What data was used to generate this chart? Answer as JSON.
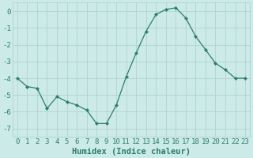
{
  "x": [
    0,
    1,
    2,
    3,
    4,
    5,
    6,
    7,
    8,
    9,
    10,
    11,
    12,
    13,
    14,
    15,
    16,
    17,
    18,
    19,
    20,
    21,
    22,
    23
  ],
  "y": [
    -4.0,
    -4.5,
    -4.6,
    -5.8,
    -5.1,
    -5.4,
    -5.6,
    -5.9,
    -6.7,
    -6.7,
    -5.6,
    -3.9,
    -2.5,
    -1.2,
    -0.2,
    0.1,
    0.2,
    -0.4,
    -1.5,
    -2.3,
    -3.1,
    -3.5,
    -4.0,
    -4.0
  ],
  "line_color": "#2e7d6e",
  "marker": "D",
  "marker_size": 2.2,
  "bg_color": "#cceae8",
  "grid_color": "#b0d4d0",
  "xlabel": "Humidex (Indice chaleur)",
  "ylim": [
    -7.5,
    0.5
  ],
  "xlim": [
    -0.5,
    23.5
  ],
  "yticks": [
    0,
    -1,
    -2,
    -3,
    -4,
    -5,
    -6,
    -7
  ],
  "xtick_labels": [
    "0",
    "1",
    "2",
    "3",
    "4",
    "5",
    "6",
    "7",
    "8",
    "9",
    "10",
    "11",
    "12",
    "13",
    "14",
    "15",
    "16",
    "17",
    "18",
    "19",
    "20",
    "21",
    "22",
    "23"
  ],
  "label_fontsize": 7.5,
  "tick_fontsize": 6.5
}
